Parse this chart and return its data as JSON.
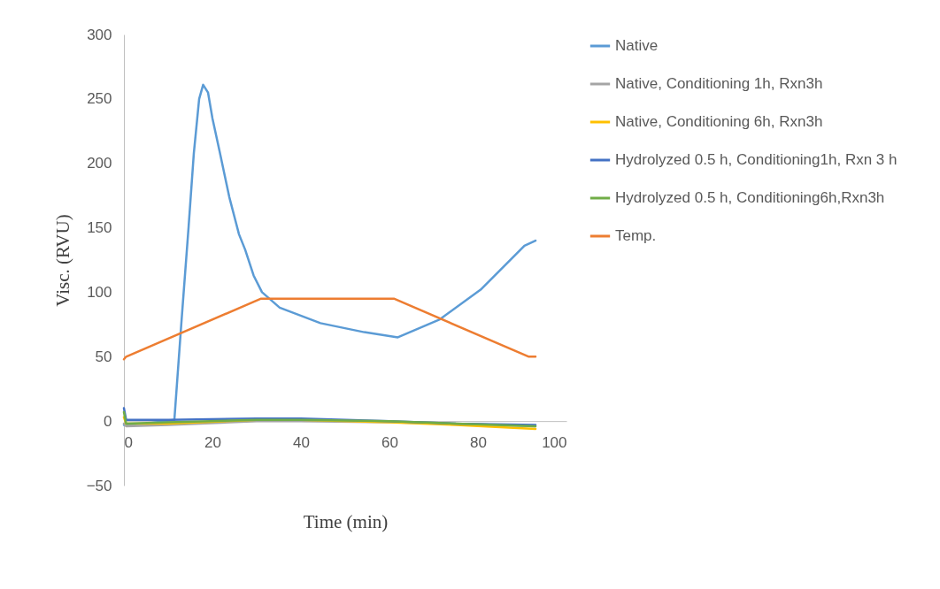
{
  "chart_data": {
    "type": "line",
    "xlabel": "Time (min)",
    "ylabel": "Visc. (RVU)",
    "xlim": [
      0,
      100
    ],
    "ylim": [
      -50,
      300
    ],
    "xticks": [
      0,
      20,
      40,
      60,
      80,
      100
    ],
    "yticks": [
      -50,
      0,
      50,
      100,
      150,
      200,
      250,
      300
    ],
    "grid": false,
    "legend": "right",
    "line_style": "solid",
    "series": [
      {
        "name": "Native",
        "color": "#5b9bd5",
        "x": [
          0,
          5,
          11.4,
          13,
          14.6,
          15.8,
          17,
          17.9,
          19,
          20,
          21.7,
          23.8,
          26,
          27.4,
          29.3,
          31.2,
          35.2,
          44.4,
          54.3,
          61.9,
          71.4,
          80.6,
          90.5,
          93
        ],
        "values": [
          -3,
          -2,
          1,
          77,
          150,
          208,
          250,
          261,
          255,
          235,
          208,
          174,
          145,
          133,
          113,
          100,
          88,
          76,
          69,
          65,
          79,
          102,
          136,
          140
        ]
      },
      {
        "name": "Native, Conditioning 1h, Rxn3h",
        "color": "#a5a5a5",
        "x": [
          0,
          0.5,
          10,
          30,
          40,
          60,
          75,
          93
        ],
        "values": [
          -2,
          -4,
          -3,
          0,
          0,
          -1,
          -2,
          -4
        ]
      },
      {
        "name": "Native, Conditioning 6h, Rxn3h",
        "color": "#ffc000",
        "x": [
          0,
          0.5,
          10,
          30,
          40,
          60,
          75,
          93
        ],
        "values": [
          3,
          -2,
          -2,
          1,
          1,
          -1,
          -3,
          -6
        ]
      },
      {
        "name": "Hydrolyzed 0.5 h, Conditioning1h, Rxn 3 h",
        "color": "#4472c4",
        "x": [
          0,
          0.5,
          10,
          30,
          40,
          60,
          75,
          93
        ],
        "values": [
          10,
          1,
          1,
          2,
          2,
          0,
          -2,
          -3
        ]
      },
      {
        "name": "Hydrolyzed 0.5 h, Conditioning6h,Rxn3h",
        "color": "#70ad47",
        "x": [
          0,
          0.5,
          10,
          30,
          40,
          60,
          75,
          93
        ],
        "values": [
          7,
          -2,
          -1,
          1,
          1,
          0,
          -2,
          -4
        ]
      },
      {
        "name": "Temp.",
        "color": "#ed7d31",
        "x": [
          0,
          0.5,
          31,
          61,
          91.5,
          93
        ],
        "values": [
          48,
          50,
          95,
          95,
          50,
          50
        ]
      }
    ]
  }
}
